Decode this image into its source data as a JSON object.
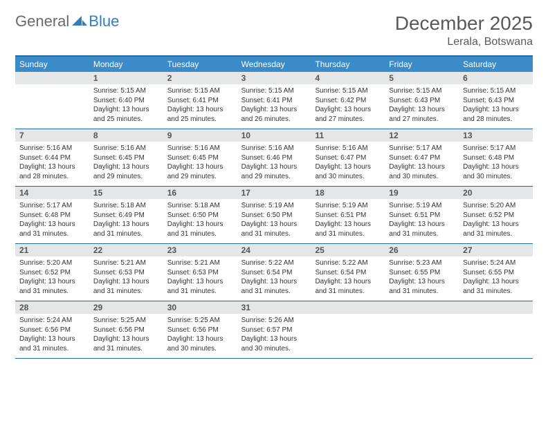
{
  "logo": {
    "text1": "General",
    "text2": "Blue",
    "icon_color": "#2d7fc1"
  },
  "title": "December 2025",
  "location": "Lerala, Botswana",
  "colors": {
    "header_bar": "#3b8bc9",
    "border": "#216aa8",
    "daynum_bg": "#e4e6e8",
    "text": "#333333",
    "title_text": "#595959"
  },
  "daysOfWeek": [
    "Sunday",
    "Monday",
    "Tuesday",
    "Wednesday",
    "Thursday",
    "Friday",
    "Saturday"
  ],
  "weeks": [
    [
      {
        "n": "",
        "sr": "",
        "ss": "",
        "dl": ""
      },
      {
        "n": "1",
        "sr": "5:15 AM",
        "ss": "6:40 PM",
        "dl": "13 hours and 25 minutes."
      },
      {
        "n": "2",
        "sr": "5:15 AM",
        "ss": "6:41 PM",
        "dl": "13 hours and 25 minutes."
      },
      {
        "n": "3",
        "sr": "5:15 AM",
        "ss": "6:41 PM",
        "dl": "13 hours and 26 minutes."
      },
      {
        "n": "4",
        "sr": "5:15 AM",
        "ss": "6:42 PM",
        "dl": "13 hours and 27 minutes."
      },
      {
        "n": "5",
        "sr": "5:15 AM",
        "ss": "6:43 PM",
        "dl": "13 hours and 27 minutes."
      },
      {
        "n": "6",
        "sr": "5:15 AM",
        "ss": "6:43 PM",
        "dl": "13 hours and 28 minutes."
      }
    ],
    [
      {
        "n": "7",
        "sr": "5:16 AM",
        "ss": "6:44 PM",
        "dl": "13 hours and 28 minutes."
      },
      {
        "n": "8",
        "sr": "5:16 AM",
        "ss": "6:45 PM",
        "dl": "13 hours and 29 minutes."
      },
      {
        "n": "9",
        "sr": "5:16 AM",
        "ss": "6:45 PM",
        "dl": "13 hours and 29 minutes."
      },
      {
        "n": "10",
        "sr": "5:16 AM",
        "ss": "6:46 PM",
        "dl": "13 hours and 29 minutes."
      },
      {
        "n": "11",
        "sr": "5:16 AM",
        "ss": "6:47 PM",
        "dl": "13 hours and 30 minutes."
      },
      {
        "n": "12",
        "sr": "5:17 AM",
        "ss": "6:47 PM",
        "dl": "13 hours and 30 minutes."
      },
      {
        "n": "13",
        "sr": "5:17 AM",
        "ss": "6:48 PM",
        "dl": "13 hours and 30 minutes."
      }
    ],
    [
      {
        "n": "14",
        "sr": "5:17 AM",
        "ss": "6:48 PM",
        "dl": "13 hours and 31 minutes."
      },
      {
        "n": "15",
        "sr": "5:18 AM",
        "ss": "6:49 PM",
        "dl": "13 hours and 31 minutes."
      },
      {
        "n": "16",
        "sr": "5:18 AM",
        "ss": "6:50 PM",
        "dl": "13 hours and 31 minutes."
      },
      {
        "n": "17",
        "sr": "5:19 AM",
        "ss": "6:50 PM",
        "dl": "13 hours and 31 minutes."
      },
      {
        "n": "18",
        "sr": "5:19 AM",
        "ss": "6:51 PM",
        "dl": "13 hours and 31 minutes."
      },
      {
        "n": "19",
        "sr": "5:19 AM",
        "ss": "6:51 PM",
        "dl": "13 hours and 31 minutes."
      },
      {
        "n": "20",
        "sr": "5:20 AM",
        "ss": "6:52 PM",
        "dl": "13 hours and 31 minutes."
      }
    ],
    [
      {
        "n": "21",
        "sr": "5:20 AM",
        "ss": "6:52 PM",
        "dl": "13 hours and 31 minutes."
      },
      {
        "n": "22",
        "sr": "5:21 AM",
        "ss": "6:53 PM",
        "dl": "13 hours and 31 minutes."
      },
      {
        "n": "23",
        "sr": "5:21 AM",
        "ss": "6:53 PM",
        "dl": "13 hours and 31 minutes."
      },
      {
        "n": "24",
        "sr": "5:22 AM",
        "ss": "6:54 PM",
        "dl": "13 hours and 31 minutes."
      },
      {
        "n": "25",
        "sr": "5:22 AM",
        "ss": "6:54 PM",
        "dl": "13 hours and 31 minutes."
      },
      {
        "n": "26",
        "sr": "5:23 AM",
        "ss": "6:55 PM",
        "dl": "13 hours and 31 minutes."
      },
      {
        "n": "27",
        "sr": "5:24 AM",
        "ss": "6:55 PM",
        "dl": "13 hours and 31 minutes."
      }
    ],
    [
      {
        "n": "28",
        "sr": "5:24 AM",
        "ss": "6:56 PM",
        "dl": "13 hours and 31 minutes."
      },
      {
        "n": "29",
        "sr": "5:25 AM",
        "ss": "6:56 PM",
        "dl": "13 hours and 31 minutes."
      },
      {
        "n": "30",
        "sr": "5:25 AM",
        "ss": "6:56 PM",
        "dl": "13 hours and 30 minutes."
      },
      {
        "n": "31",
        "sr": "5:26 AM",
        "ss": "6:57 PM",
        "dl": "13 hours and 30 minutes."
      },
      {
        "n": "",
        "sr": "",
        "ss": "",
        "dl": ""
      },
      {
        "n": "",
        "sr": "",
        "ss": "",
        "dl": ""
      },
      {
        "n": "",
        "sr": "",
        "ss": "",
        "dl": ""
      }
    ]
  ],
  "labels": {
    "sunrise": "Sunrise:",
    "sunset": "Sunset:",
    "daylight": "Daylight:"
  }
}
